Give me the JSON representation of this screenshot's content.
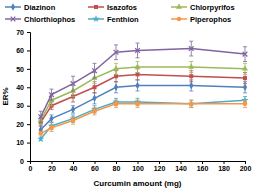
{
  "chart_data": {
    "type": "line",
    "x_label": "Curcumin amount (mg)",
    "y_label": "ER%",
    "x": [
      10,
      20,
      40,
      60,
      80,
      100,
      150,
      200
    ],
    "xlim": [
      0,
      200
    ],
    "xticks": [
      0,
      20,
      40,
      60,
      80,
      100,
      120,
      140,
      160,
      180,
      200
    ],
    "ylim": [
      0,
      70
    ],
    "yticks": [
      0,
      10,
      20,
      30,
      40,
      50,
      60,
      70
    ],
    "legend": "top",
    "series": [
      {
        "name": "Diazinon",
        "color": "#4f81bd",
        "marker": "diamond",
        "values": [
          17,
          23,
          28,
          34,
          40,
          41,
          41,
          40
        ],
        "errors": [
          2,
          2,
          2,
          3,
          3,
          3,
          3,
          3
        ]
      },
      {
        "name": "Isazofos",
        "color": "#c0504d",
        "marker": "square",
        "values": [
          21,
          30,
          35,
          40,
          46,
          47,
          46,
          45
        ],
        "errors": [
          2,
          2,
          3,
          3,
          3,
          3,
          3,
          3
        ]
      },
      {
        "name": "Chlorpyrifos",
        "color": "#9bbb59",
        "marker": "triangle",
        "values": [
          22,
          33,
          38,
          45,
          50,
          51,
          51,
          50
        ],
        "errors": [
          2,
          3,
          3,
          3,
          3,
          3,
          3,
          3
        ]
      },
      {
        "name": "Chlorthiophos",
        "color": "#8064a2",
        "marker": "x",
        "values": [
          24,
          36,
          42,
          49,
          59,
          60,
          61,
          58
        ],
        "errors": [
          3,
          3,
          4,
          4,
          4,
          4,
          4,
          4
        ]
      },
      {
        "name": "Fenthion",
        "color": "#4bacc6",
        "marker": "star",
        "values": [
          12,
          19,
          23,
          28,
          32,
          32,
          31,
          33
        ],
        "errors": [
          1,
          2,
          2,
          2,
          2,
          2,
          2,
          2
        ]
      },
      {
        "name": "Piperophos",
        "color": "#f79646",
        "marker": "circle",
        "values": [
          15,
          18,
          22,
          27,
          31,
          31,
          31,
          31
        ],
        "errors": [
          1,
          2,
          2,
          2,
          2,
          2,
          2,
          2
        ]
      }
    ]
  }
}
